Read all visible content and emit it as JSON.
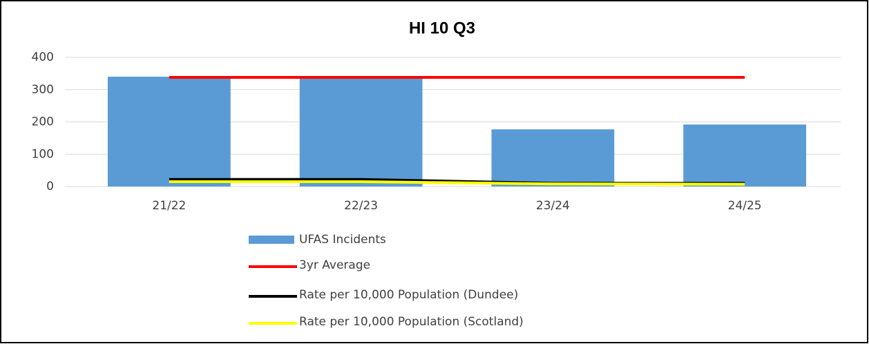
{
  "chart_data": {
    "type": "combo",
    "title": "HI 10 Q3",
    "categories": [
      "21/22",
      "22/23",
      "23/24",
      "24/25"
    ],
    "series": [
      {
        "name": "UFAS Incidents",
        "type": "bar",
        "color": "#5b9bd5",
        "values": [
          340,
          336,
          177,
          192
        ]
      },
      {
        "name": "3yr Average",
        "type": "line",
        "color": "#ff0000",
        "values": [
          338,
          338,
          338,
          338
        ]
      },
      {
        "name": "Rate per 10,000 Population (Dundee)",
        "type": "line",
        "color": "#000000",
        "values": [
          22,
          22,
          10,
          10
        ]
      },
      {
        "name": "Rate per 10,000 Population (Scotland)",
        "type": "line",
        "color": "#ffff00",
        "values": [
          15,
          15,
          8,
          7
        ]
      }
    ],
    "ylim": [
      0,
      400
    ],
    "yticks": [
      0,
      100,
      200,
      300,
      400
    ],
    "grid": true,
    "legend": "bottom"
  }
}
